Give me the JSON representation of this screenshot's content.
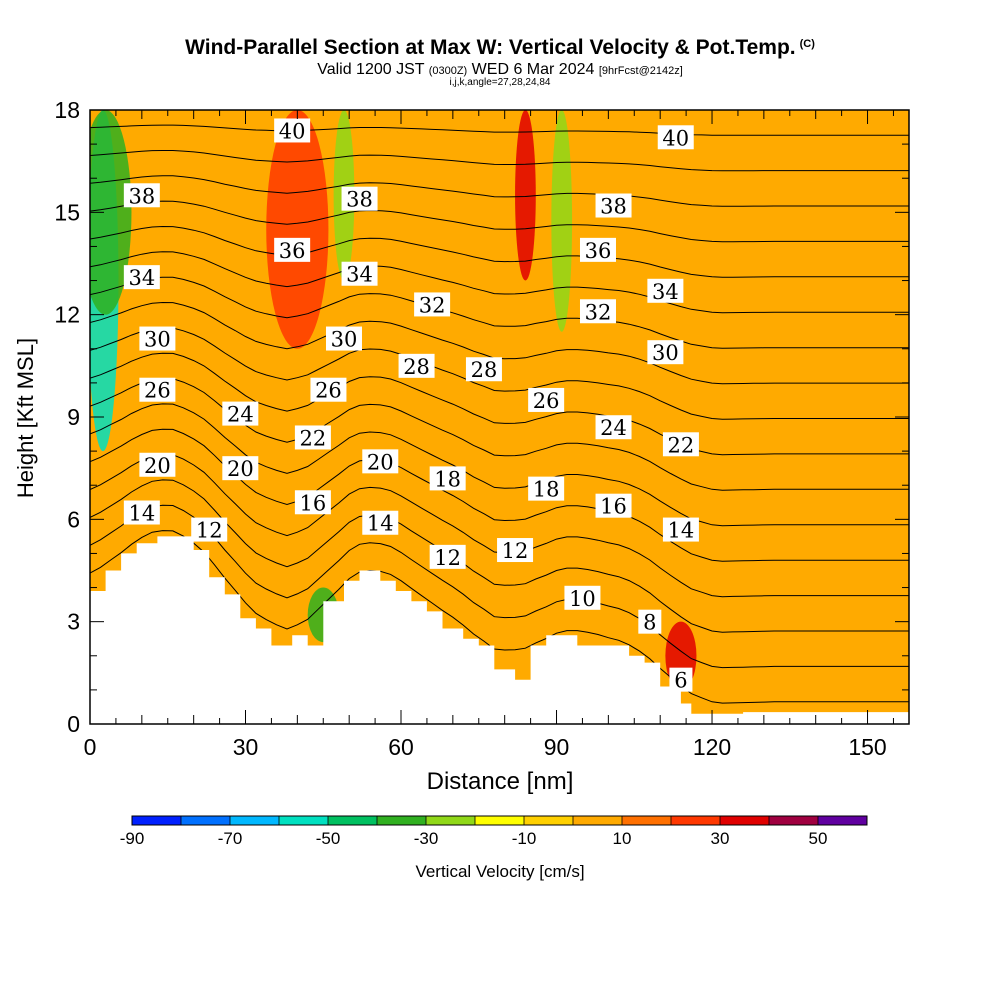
{
  "title": {
    "main": "Wind-Parallel Section at Max W: Vertical Velocity & Pot.Temp.",
    "copyright": "(C)",
    "valid_prefix": "Valid 1200 JST",
    "valid_utc": "(0300Z)",
    "valid_date": "WED 6 Mar 2024",
    "forecast": "[9hrFcst@2142z]",
    "indices": "i,j,k,angle=27,28,24,84"
  },
  "chart_data": {
    "type": "heatmap",
    "xlabel": "Distance [nm]",
    "ylabel": "Height [Kft MSL]",
    "xlim": [
      0,
      158
    ],
    "ylim": [
      0,
      18
    ],
    "xticks": [
      0,
      30,
      60,
      90,
      120,
      150
    ],
    "yticks": [
      0,
      3,
      6,
      9,
      12,
      15,
      18
    ],
    "background_w": 0,
    "terrain": [
      [
        0,
        3.9
      ],
      [
        3,
        3.9
      ],
      [
        3,
        4.5
      ],
      [
        6,
        4.5
      ],
      [
        6,
        5
      ],
      [
        9,
        5
      ],
      [
        9,
        5.3
      ],
      [
        13,
        5.3
      ],
      [
        13,
        5.5
      ],
      [
        20,
        5.5
      ],
      [
        20,
        5.1
      ],
      [
        23,
        5.1
      ],
      [
        23,
        4.3
      ],
      [
        26,
        4.3
      ],
      [
        26,
        3.8
      ],
      [
        29,
        3.8
      ],
      [
        29,
        3.1
      ],
      [
        32,
        3.1
      ],
      [
        32,
        2.8
      ],
      [
        35,
        2.8
      ],
      [
        35,
        2.3
      ],
      [
        39,
        2.3
      ],
      [
        39,
        2.6
      ],
      [
        42,
        2.6
      ],
      [
        42,
        2.3
      ],
      [
        45,
        2.3
      ],
      [
        45,
        3.6
      ],
      [
        49,
        3.6
      ],
      [
        49,
        4.2
      ],
      [
        52,
        4.2
      ],
      [
        52,
        4.5
      ],
      [
        56,
        4.5
      ],
      [
        56,
        4.2
      ],
      [
        59,
        4.2
      ],
      [
        59,
        3.9
      ],
      [
        62,
        3.9
      ],
      [
        62,
        3.6
      ],
      [
        65,
        3.6
      ],
      [
        65,
        3.3
      ],
      [
        68,
        3.3
      ],
      [
        68,
        2.8
      ],
      [
        72,
        2.8
      ],
      [
        72,
        2.5
      ],
      [
        75,
        2.5
      ],
      [
        75,
        2.3
      ],
      [
        78,
        2.3
      ],
      [
        78,
        1.6
      ],
      [
        82,
        1.6
      ],
      [
        82,
        1.3
      ],
      [
        85,
        1.3
      ],
      [
        85,
        2.3
      ],
      [
        88,
        2.3
      ],
      [
        88,
        2.6
      ],
      [
        94,
        2.6
      ],
      [
        94,
        2.3
      ],
      [
        104,
        2.3
      ],
      [
        104,
        2.0
      ],
      [
        107,
        2.0
      ],
      [
        107,
        1.8
      ],
      [
        110,
        1.8
      ],
      [
        110,
        1.1
      ],
      [
        114,
        1.1
      ],
      [
        114,
        0.6
      ],
      [
        116,
        0.6
      ],
      [
        116,
        0.3
      ],
      [
        126,
        0.3
      ],
      [
        126,
        0.35
      ],
      [
        158,
        0.35
      ]
    ],
    "vertical_velocity_features": [
      {
        "x": 2.5,
        "z0": 8,
        "z1": 18,
        "w": -60,
        "halfwidth": 3
      },
      {
        "x": 3,
        "z0": 12,
        "z1": 18,
        "w": -40,
        "halfwidth": 5
      },
      {
        "x": 40,
        "z0": 11,
        "z1": 18,
        "w": 25,
        "halfwidth": 6
      },
      {
        "x": 49,
        "z0": 13,
        "z1": 18,
        "w": -28,
        "halfwidth": 2
      },
      {
        "x": 84,
        "z0": 13,
        "z1": 18,
        "w": 35,
        "halfwidth": 2
      },
      {
        "x": 91,
        "z0": 11.5,
        "z1": 18,
        "w": -28,
        "halfwidth": 2
      },
      {
        "x": 45,
        "z0": 2.4,
        "z1": 4,
        "w": -40,
        "halfwidth": 3
      },
      {
        "x": 114,
        "z0": 1,
        "z1": 3,
        "w": 30,
        "halfwidth": 3
      }
    ],
    "theta_levels": [
      6,
      8,
      10,
      12,
      14,
      16,
      18,
      20,
      22,
      24,
      26,
      28,
      30,
      32,
      34,
      36,
      38,
      40
    ],
    "theta_labels": [
      {
        "text": "40",
        "x": 39,
        "z": 17.4
      },
      {
        "text": "40",
        "x": 113,
        "z": 17.2
      },
      {
        "text": "38",
        "x": 10,
        "z": 15.5
      },
      {
        "text": "38",
        "x": 52,
        "z": 15.4
      },
      {
        "text": "38",
        "x": 101,
        "z": 15.2
      },
      {
        "text": "36",
        "x": 39,
        "z": 13.9
      },
      {
        "text": "36",
        "x": 98,
        "z": 13.9
      },
      {
        "text": "34",
        "x": 10,
        "z": 13.1
      },
      {
        "text": "34",
        "x": 52,
        "z": 13.2
      },
      {
        "text": "34",
        "x": 111,
        "z": 12.7
      },
      {
        "text": "32",
        "x": 66,
        "z": 12.3
      },
      {
        "text": "32",
        "x": 98,
        "z": 12.1
      },
      {
        "text": "30",
        "x": 13,
        "z": 11.3
      },
      {
        "text": "30",
        "x": 49,
        "z": 11.3
      },
      {
        "text": "30",
        "x": 111,
        "z": 10.9
      },
      {
        "text": "28",
        "x": 63,
        "z": 10.5
      },
      {
        "text": "28",
        "x": 76,
        "z": 10.4
      },
      {
        "text": "26",
        "x": 13,
        "z": 9.8
      },
      {
        "text": "26",
        "x": 46,
        "z": 9.8
      },
      {
        "text": "26",
        "x": 88,
        "z": 9.5
      },
      {
        "text": "24",
        "x": 29,
        "z": 9.1
      },
      {
        "text": "24",
        "x": 101,
        "z": 8.7
      },
      {
        "text": "22",
        "x": 43,
        "z": 8.4
      },
      {
        "text": "22",
        "x": 114,
        "z": 8.2
      },
      {
        "text": "20",
        "x": 13,
        "z": 7.6
      },
      {
        "text": "20",
        "x": 29,
        "z": 7.5
      },
      {
        "text": "20",
        "x": 56,
        "z": 7.7
      },
      {
        "text": "18",
        "x": 69,
        "z": 7.2
      },
      {
        "text": "18",
        "x": 88,
        "z": 6.9
      },
      {
        "text": "16",
        "x": 43,
        "z": 6.5
      },
      {
        "text": "16",
        "x": 101,
        "z": 6.4
      },
      {
        "text": "14",
        "x": 10,
        "z": 6.2
      },
      {
        "text": "14",
        "x": 56,
        "z": 5.9
      },
      {
        "text": "14",
        "x": 114,
        "z": 5.7
      },
      {
        "text": "12",
        "x": 23,
        "z": 5.7
      },
      {
        "text": "12",
        "x": 69,
        "z": 4.9
      },
      {
        "text": "12",
        "x": 82,
        "z": 5.1
      },
      {
        "text": "10",
        "x": 95,
        "z": 3.7
      },
      {
        "text": "8",
        "x": 108,
        "z": 3.0
      },
      {
        "text": "6",
        "x": 114,
        "z": 1.3
      }
    ],
    "colorbar": {
      "label": "Vertical Velocity [cm/s]",
      "tick_labels": [
        "-90",
        "-70",
        "-50",
        "-30",
        "-10",
        "10",
        "30",
        "50"
      ],
      "tick_values": [
        -90,
        -70,
        -50,
        -30,
        -10,
        10,
        30,
        50
      ],
      "boundaries": [
        -90,
        -80,
        -70,
        -60,
        -50,
        -40,
        -30,
        -20,
        -10,
        0,
        10,
        20,
        30,
        40,
        50,
        60
      ],
      "colors": [
        "#0020ff",
        "#0070ff",
        "#00b8ff",
        "#00e0c0",
        "#00c060",
        "#30b020",
        "#90d818",
        "#ffff00",
        "#ffd000",
        "#ffaa00",
        "#ff7000",
        "#ff3800",
        "#e00000",
        "#a00040",
        "#6000a0"
      ]
    }
  }
}
